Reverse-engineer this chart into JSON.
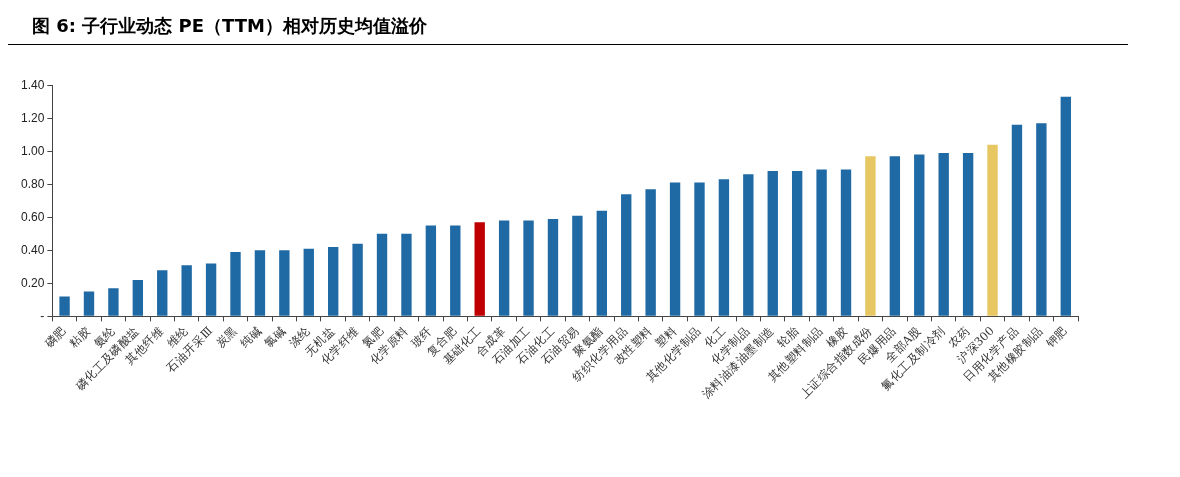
{
  "chart_data": {
    "type": "bar",
    "title": "图 6:  子行业动态 PE（TTM）相对历史均值溢价",
    "categories": [
      "磷肥",
      "粘胶",
      "氨纶",
      "磷化工及磷酸盐",
      "其他纤维",
      "维纶",
      "石油开采Ⅲ",
      "炭黑",
      "纯碱",
      "氯碱",
      "涤纶",
      "无机盐",
      "化学纤维",
      "氮肥",
      "化学原料",
      "玻纤",
      "复合肥",
      "基础化工",
      "合成革",
      "石油加工",
      "石油化工",
      "石油贸易",
      "聚氨酯",
      "纺织化学用品",
      "改性塑料",
      "塑料",
      "其他化学制品",
      "化工",
      "化学制品",
      "涂料油漆油墨制造",
      "轮胎",
      "其他塑料制品",
      "橡胶",
      "上证综合指数成份",
      "民爆用品",
      "全部A股",
      "氟化工及制冷剂",
      "农药",
      "沪深300",
      "日用化学产品",
      "其他橡胶制品",
      "钾肥"
    ],
    "values": [
      0.12,
      0.15,
      0.17,
      0.22,
      0.28,
      0.31,
      0.32,
      0.39,
      0.4,
      0.4,
      0.41,
      0.42,
      0.44,
      0.5,
      0.5,
      0.55,
      0.55,
      0.57,
      0.58,
      0.58,
      0.59,
      0.61,
      0.64,
      0.74,
      0.77,
      0.81,
      0.81,
      0.83,
      0.86,
      0.88,
      0.88,
      0.89,
      0.89,
      0.97,
      0.97,
      0.98,
      0.99,
      0.99,
      1.04,
      1.16,
      1.17,
      1.33
    ],
    "colors": [
      "#1f6aa5",
      "#1f6aa5",
      "#1f6aa5",
      "#1f6aa5",
      "#1f6aa5",
      "#1f6aa5",
      "#1f6aa5",
      "#1f6aa5",
      "#1f6aa5",
      "#1f6aa5",
      "#1f6aa5",
      "#1f6aa5",
      "#1f6aa5",
      "#1f6aa5",
      "#1f6aa5",
      "#1f6aa5",
      "#1f6aa5",
      "#c00000",
      "#1f6aa5",
      "#1f6aa5",
      "#1f6aa5",
      "#1f6aa5",
      "#1f6aa5",
      "#1f6aa5",
      "#1f6aa5",
      "#1f6aa5",
      "#1f6aa5",
      "#1f6aa5",
      "#1f6aa5",
      "#1f6aa5",
      "#1f6aa5",
      "#1f6aa5",
      "#1f6aa5",
      "#e6c762",
      "#1f6aa5",
      "#1f6aa5",
      "#1f6aa5",
      "#1f6aa5",
      "#e6c762",
      "#1f6aa5",
      "#1f6aa5",
      "#1f6aa5"
    ],
    "ylim": [
      0,
      1.4
    ],
    "yticks": [
      {
        "value": 0,
        "label": "-"
      },
      {
        "value": 0.2,
        "label": "0.20"
      },
      {
        "value": 0.4,
        "label": "0.40"
      },
      {
        "value": 0.6,
        "label": "0.60"
      },
      {
        "value": 0.8,
        "label": "0.80"
      },
      {
        "value": 1.0,
        "label": "1.00"
      },
      {
        "value": 1.2,
        "label": "1.20"
      },
      {
        "value": 1.4,
        "label": "1.40"
      }
    ],
    "grid": false,
    "legend": false
  }
}
